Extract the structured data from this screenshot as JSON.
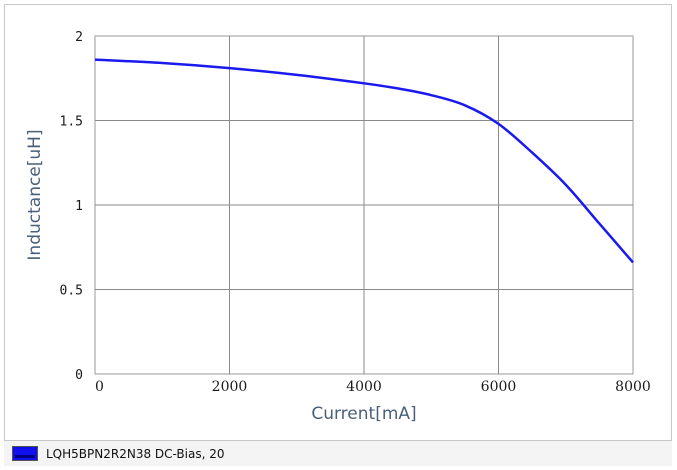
{
  "chart_data": {
    "type": "line",
    "xlabel": "Current[mA]",
    "ylabel": "Inductance[uH]",
    "xlim": [
      0,
      8000
    ],
    "ylim": [
      0,
      2
    ],
    "x_ticks": [
      "0",
      "2000",
      "4000",
      "6000",
      "8000"
    ],
    "x_tick_values": [
      0,
      2000,
      4000,
      6000,
      8000
    ],
    "y_ticks": [
      "0",
      "0.5",
      "1",
      "1.5",
      "2"
    ],
    "y_tick_values": [
      0,
      0.5,
      1,
      1.5,
      2
    ],
    "grid": true,
    "legend_position": "bottom-left",
    "series": [
      {
        "name": "LQH5BPN2R2N38 DC-Bias, 20",
        "color": "#1a1aee",
        "x": [
          0,
          1000,
          2000,
          3000,
          4000,
          4500,
          5000,
          5500,
          6000,
          6500,
          7000,
          7500,
          8000
        ],
        "y": [
          1.86,
          1.84,
          1.81,
          1.77,
          1.72,
          1.69,
          1.65,
          1.59,
          1.48,
          1.31,
          1.12,
          0.89,
          0.66
        ]
      }
    ]
  }
}
